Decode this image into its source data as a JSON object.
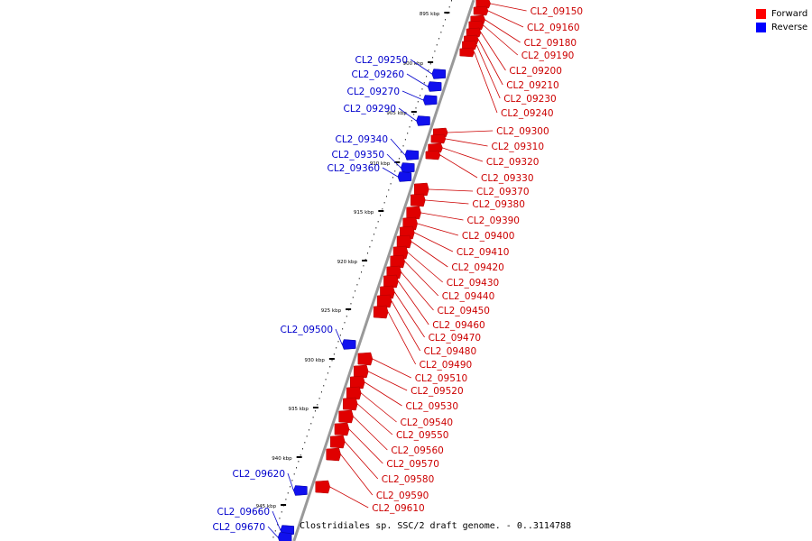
{
  "legend": {
    "items": [
      {
        "label": "Forward",
        "color": "#ff0000"
      },
      {
        "label": "Reverse",
        "color": "#0000ff"
      }
    ]
  },
  "caption": "Clostridiales sp. SSC/2 draft genome. - 0..3114788",
  "colors": {
    "forward": "#e00000",
    "reverse": "#1010ee",
    "backbone": "#999999",
    "label_forward": "#cc0000",
    "label_reverse": "#0000cc"
  },
  "ticks": [
    "895 kbp",
    "900 kbp",
    "905 kbp",
    "910 kbp",
    "915 kbp",
    "920 kbp",
    "925 kbp",
    "930 kbp",
    "935 kbp",
    "940 kbp",
    "945 kbp"
  ],
  "forward_genes": [
    "CL2_09150",
    "CL2_09160",
    "CL2_09180",
    "CL2_09190",
    "CL2_09200",
    "CL2_09210",
    "CL2_09230",
    "CL2_09240",
    "CL2_09300",
    "CL2_09310",
    "CL2_09320",
    "CL2_09330",
    "CL2_09370",
    "CL2_09380",
    "CL2_09390",
    "CL2_09400",
    "CL2_09410",
    "CL2_09420",
    "CL2_09430",
    "CL2_09440",
    "CL2_09450",
    "CL2_09460",
    "CL2_09470",
    "CL2_09480",
    "CL2_09490",
    "CL2_09510",
    "CL2_09520",
    "CL2_09530",
    "CL2_09540",
    "CL2_09550",
    "CL2_09560",
    "CL2_09570",
    "CL2_09580",
    "CL2_09590",
    "CL2_09610"
  ],
  "reverse_genes": [
    "CL2_09250",
    "CL2_09260",
    "CL2_09270",
    "CL2_09290",
    "CL2_09340",
    "CL2_09350",
    "CL2_09360",
    "CL2_09500",
    "CL2_09620",
    "CL2_09660",
    "CL2_09670"
  ]
}
